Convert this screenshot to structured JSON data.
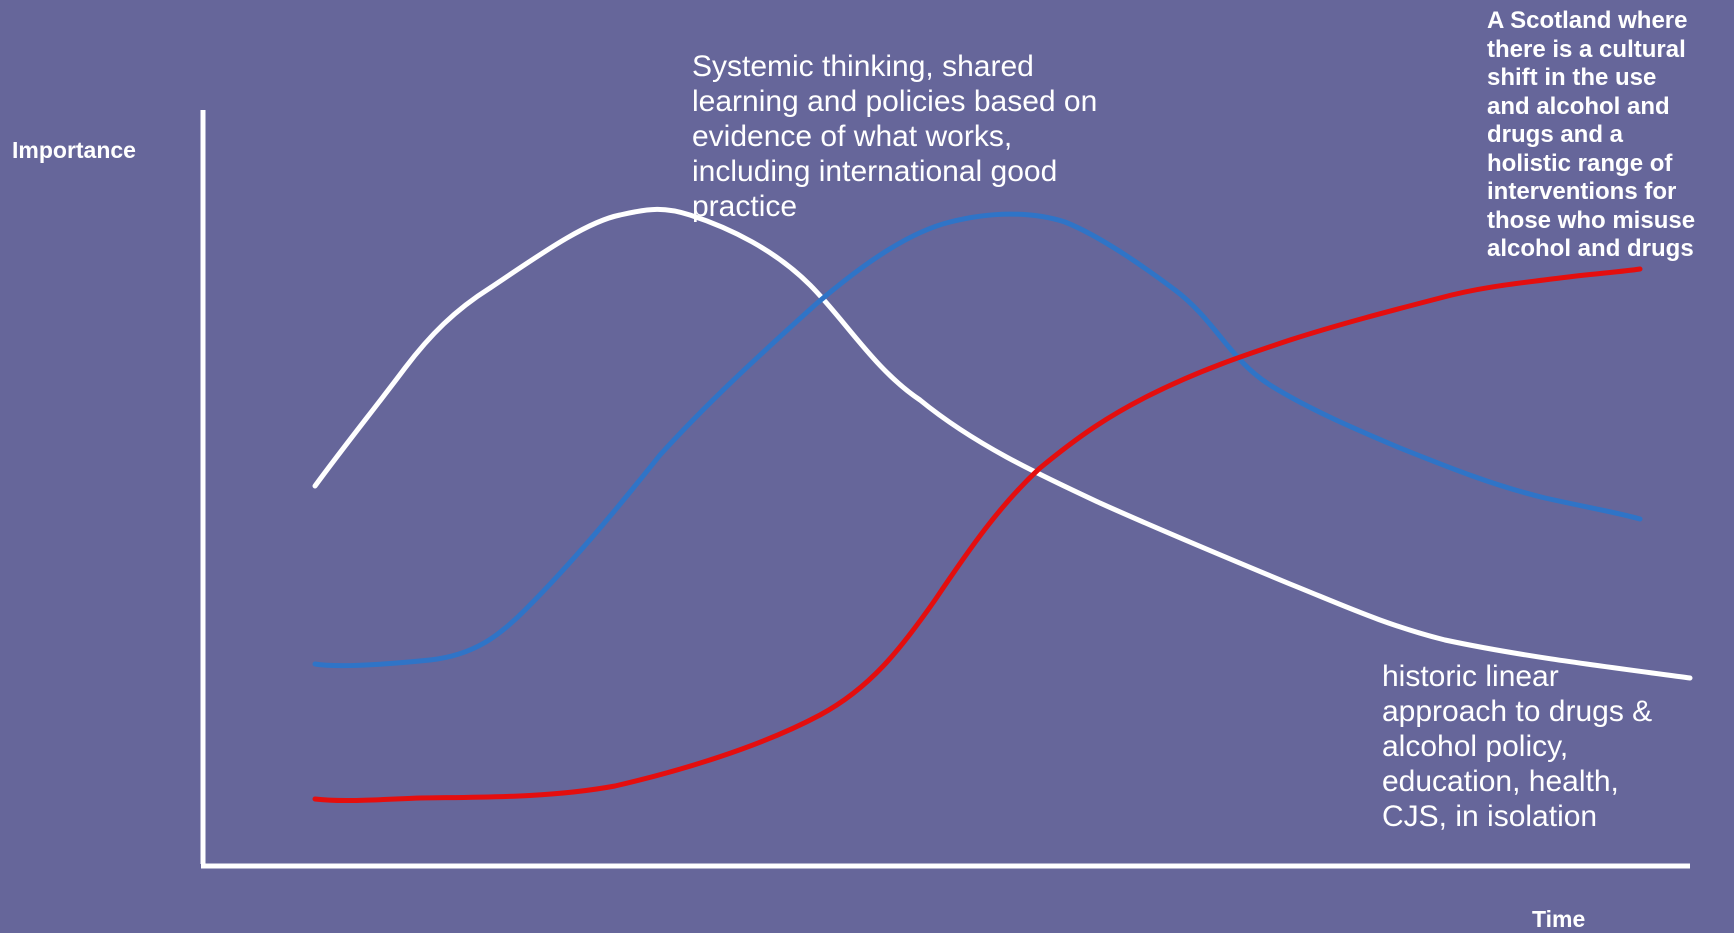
{
  "axes": {
    "y_label": "Importance",
    "x_label": "Time"
  },
  "annotations": {
    "systemic": "Systemic  thinking, shared\nlearning and  policies based on\nevidence of what works,\nincluding international good\npractice",
    "scotland": "A Scotland where\nthere is a  cultural\nshift in the use\nand  alcohol and\ndrugs and a\nholistic range of\ninterventions for\nthose who misuse\nalcohol and drugs",
    "historic": "historic linear\napproach to drugs &\nalcohol policy,\neducation, health,\nCJS, in isolation"
  },
  "colors": {
    "background": "#66669a",
    "axis": "#ffffff",
    "white_curve": "#ffffff",
    "blue_curve": "#2f74c7",
    "red_curve": "#e40e0e"
  }
}
